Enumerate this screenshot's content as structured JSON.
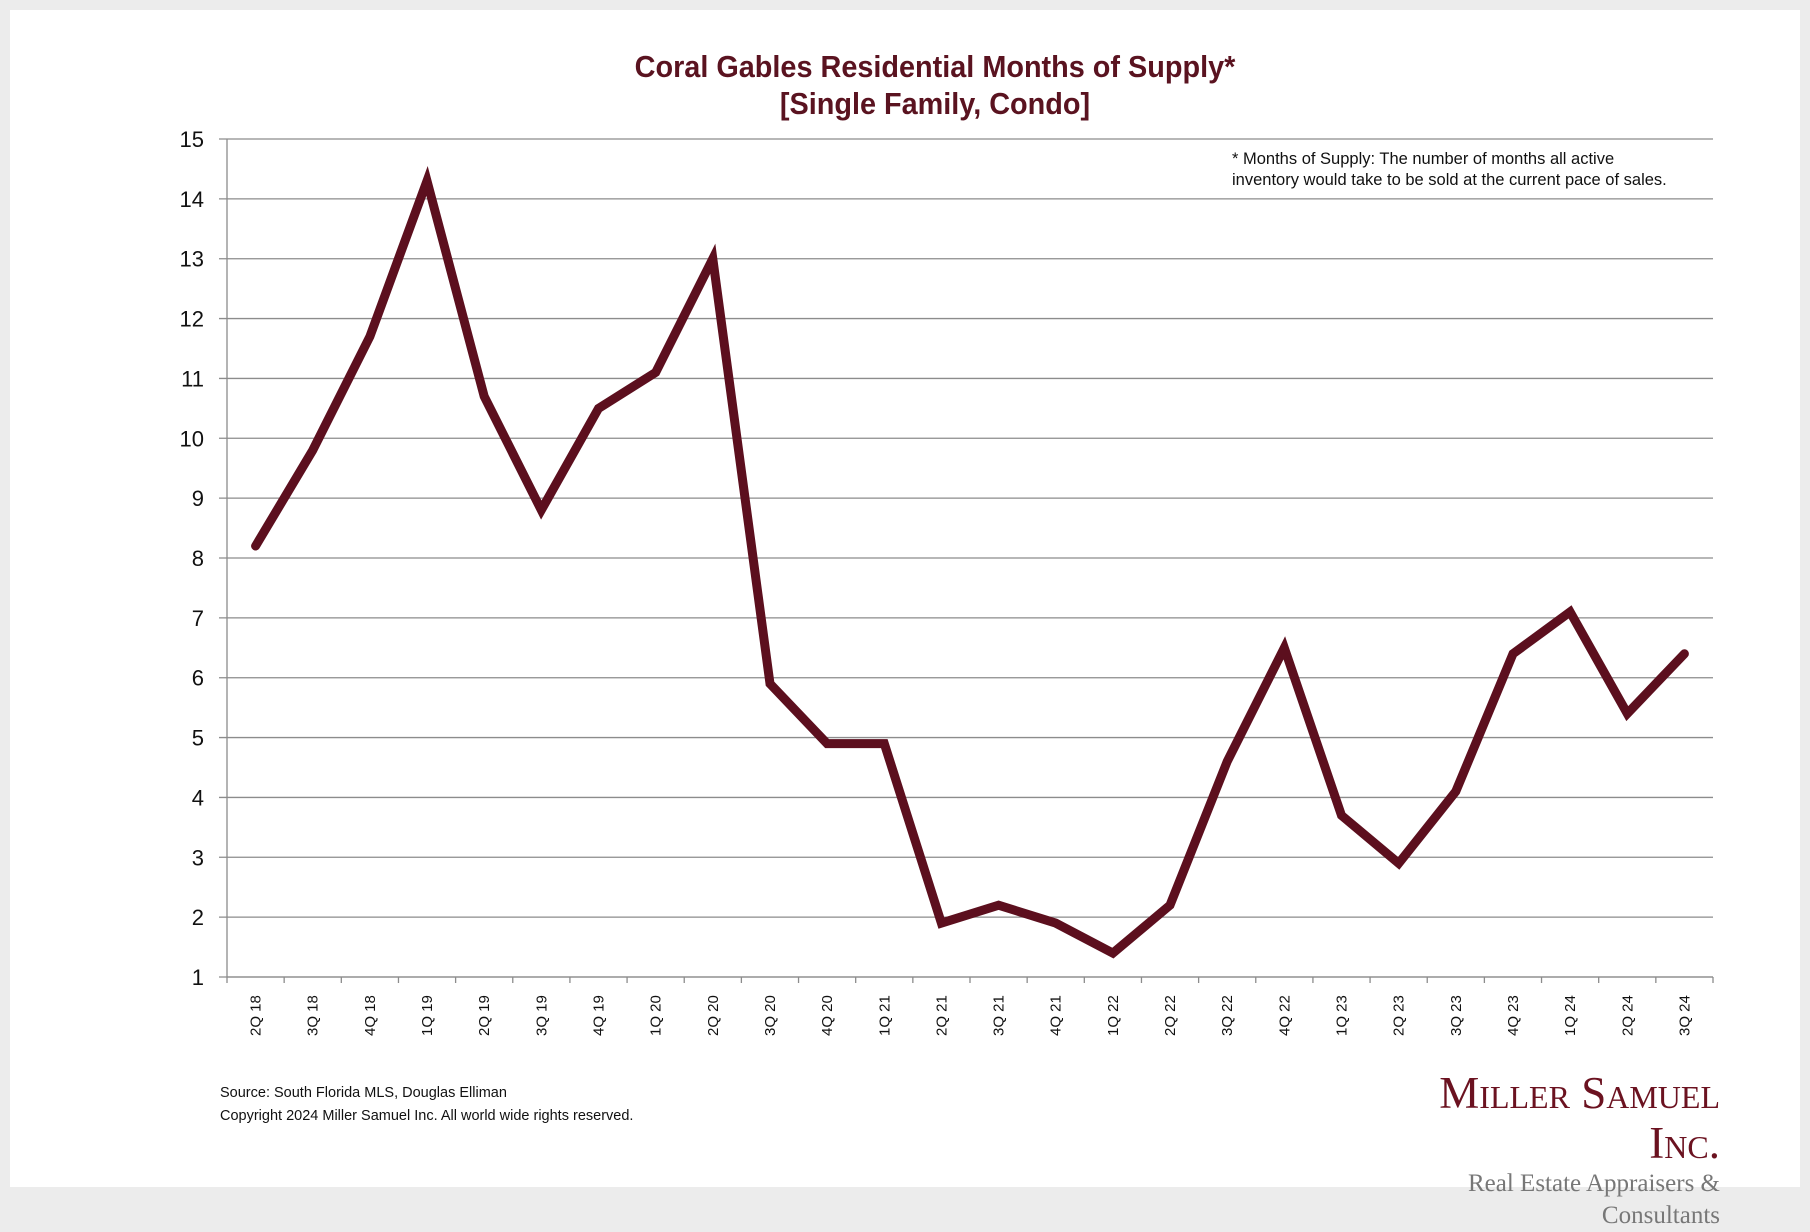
{
  "chart_data": {
    "type": "line",
    "title": "Coral Gables Residential Months of Supply*",
    "subtitle": "[Single Family, Condo]",
    "xlabel": "",
    "ylabel": "",
    "ylim": [
      1,
      15
    ],
    "yticks": [
      "15",
      "14",
      "13",
      "12",
      "11",
      "10",
      "9",
      "8",
      "7",
      "6",
      "5",
      "4",
      "3",
      "2",
      "1"
    ],
    "grid": true,
    "categories": [
      "2Q 18",
      "3Q 18",
      "4Q 18",
      "1Q 19",
      "2Q 19",
      "3Q 19",
      "4Q 19",
      "1Q 20",
      "2Q 20",
      "3Q 20",
      "4Q 20",
      "1Q 21",
      "2Q 21",
      "3Q 21",
      "4Q 21",
      "1Q 22",
      "2Q 22",
      "3Q 22",
      "4Q 22",
      "1Q 23",
      "2Q 23",
      "3Q 23",
      "4Q 23",
      "1Q 24",
      "2Q 24",
      "3Q 24"
    ],
    "series": [
      {
        "name": "Months of Supply",
        "color": "#5c0f1e",
        "values": [
          8.2,
          9.8,
          11.7,
          14.3,
          10.7,
          8.8,
          10.5,
          11.1,
          13.0,
          5.9,
          4.9,
          4.9,
          1.9,
          2.2,
          1.9,
          1.4,
          2.2,
          4.6,
          6.5,
          3.7,
          2.9,
          4.1,
          6.4,
          7.1,
          5.4,
          6.4
        ]
      }
    ],
    "annotation": {
      "line1": "* Months of Supply: The number of months all active",
      "line2": "inventory would take to be sold at the current pace of sales."
    }
  },
  "footer": {
    "source": "Source: South Florida MLS, Douglas Elliman",
    "copyright": "Copyright 2024 Miller Samuel Inc.  All world wide rights reserved."
  },
  "logo": {
    "name": "Miller Samuel Inc.",
    "tagline": "Real Estate Appraisers & Consultants"
  },
  "colors": {
    "title": "#5a1320",
    "line": "#5c0f1e",
    "grid": "#8c8c8c"
  }
}
